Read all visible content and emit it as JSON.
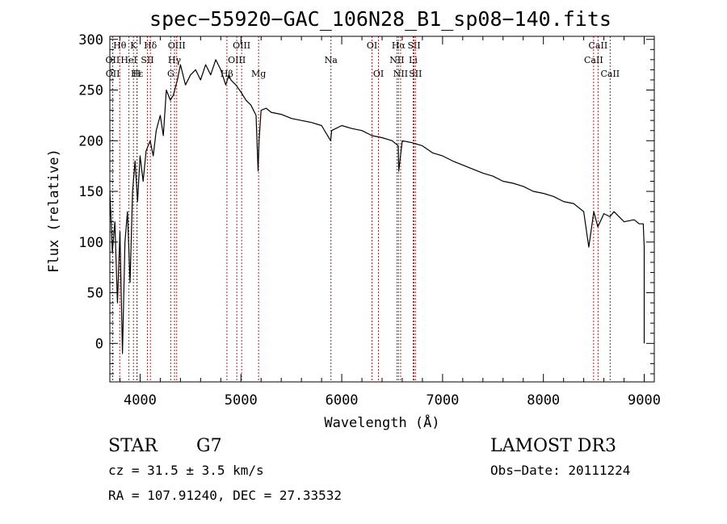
{
  "chart_data": {
    "type": "line",
    "title": "spec−55920−GAC_106N28_B1_sp08−140.fits",
    "xlabel": "Wavelength (Å)",
    "ylabel": "Flux (relative)",
    "xlim": [
      3700,
      9100
    ],
    "ylim": [
      -38,
      303
    ],
    "x_ticks": [
      4000,
      5000,
      6000,
      7000,
      8000,
      9000
    ],
    "y_ticks": [
      0,
      50,
      100,
      150,
      200,
      250,
      300
    ],
    "x_minor_step": 200,
    "y_minor_step": 10,
    "series": [
      {
        "name": "spectrum",
        "x": [
          3700,
          3725,
          3750,
          3775,
          3800,
          3825,
          3850,
          3875,
          3900,
          3925,
          3950,
          3975,
          4000,
          4030,
          4060,
          4100,
          4130,
          4160,
          4200,
          4230,
          4260,
          4300,
          4330,
          4370,
          4400,
          4450,
          4500,
          4550,
          4600,
          4650,
          4700,
          4750,
          4800,
          4850,
          4880,
          4900,
          4950,
          5000,
          5050,
          5100,
          5150,
          5170,
          5180,
          5200,
          5250,
          5300,
          5400,
          5500,
          5600,
          5700,
          5800,
          5890,
          5900,
          6000,
          6100,
          6200,
          6300,
          6400,
          6500,
          6560,
          6565,
          6600,
          6700,
          6800,
          6900,
          7000,
          7100,
          7200,
          7300,
          7400,
          7500,
          7600,
          7700,
          7800,
          7900,
          8000,
          8100,
          8200,
          8300,
          8400,
          8450,
          8500,
          8540,
          8600,
          8660,
          8700,
          8800,
          8900,
          8950,
          8990,
          9000,
          9000
        ],
        "y": [
          150,
          90,
          120,
          40,
          110,
          -10,
          100,
          130,
          60,
          150,
          180,
          140,
          185,
          160,
          190,
          200,
          185,
          210,
          225,
          205,
          250,
          240,
          245,
          260,
          275,
          255,
          265,
          270,
          260,
          275,
          265,
          280,
          270,
          255,
          265,
          260,
          255,
          248,
          240,
          235,
          225,
          170,
          200,
          230,
          232,
          228,
          226,
          222,
          220,
          218,
          215,
          200,
          210,
          215,
          212,
          210,
          205,
          203,
          200,
          195,
          170,
          200,
          198,
          195,
          188,
          185,
          180,
          176,
          172,
          168,
          165,
          160,
          158,
          155,
          150,
          148,
          145,
          140,
          138,
          130,
          95,
          130,
          115,
          128,
          125,
          130,
          120,
          122,
          118,
          118,
          95,
          0
        ]
      }
    ],
    "lines": [
      {
        "label": "Hθ",
        "x": 3798,
        "row": 0
      },
      {
        "label": "OII",
        "x": 3727,
        "row": 1
      },
      {
        "label": "OII",
        "x": 3729,
        "row": 2
      },
      {
        "label": "K",
        "x": 3934,
        "row": 0
      },
      {
        "label": "HeI",
        "x": 3889,
        "row": 1
      },
      {
        "label": "Hε",
        "x": 3970,
        "row": 2
      },
      {
        "label": "Hδ",
        "x": 4102,
        "row": 0
      },
      {
        "label": "SII",
        "x": 4072,
        "row": 1
      },
      {
        "label": "H",
        "x": 3968,
        "row": 2
      },
      {
        "label": "OIII",
        "x": 4363,
        "row": 0
      },
      {
        "label": "Hγ",
        "x": 4341,
        "row": 1
      },
      {
        "label": "G",
        "x": 4304,
        "row": 2
      },
      {
        "label": "OIII",
        "x": 5007,
        "row": 0
      },
      {
        "label": "OIII",
        "x": 4959,
        "row": 1
      },
      {
        "label": "Hβ",
        "x": 4861,
        "row": 2
      },
      {
        "label": "Mg",
        "x": 5175,
        "row": 2
      },
      {
        "label": "Na",
        "x": 5893,
        "row": 1
      },
      {
        "label": "OI",
        "x": 6300,
        "row": 0
      },
      {
        "label": "OI",
        "x": 6364,
        "row": 2
      },
      {
        "label": "Hα",
        "x": 6563,
        "row": 0
      },
      {
        "label": "NII",
        "x": 6548,
        "row": 1
      },
      {
        "label": "NII",
        "x": 6584,
        "row": 2
      },
      {
        "label": "SII",
        "x": 6717,
        "row": 0
      },
      {
        "label": "Li",
        "x": 6708,
        "row": 1
      },
      {
        "label": "SII",
        "x": 6731,
        "row": 2
      },
      {
        "label": "CaII",
        "x": 8542,
        "row": 0
      },
      {
        "label": "CaII",
        "x": 8498,
        "row": 1
      },
      {
        "label": "CaII",
        "x": 8662,
        "row": 2
      }
    ]
  },
  "info": {
    "object_class": "STAR",
    "subclass": "G7",
    "survey": "LAMOST DR3",
    "redshift_line": "cz = 31.5 ± 3.5 km/s",
    "obs_date_line": "Obs−Date: 20111224",
    "coord_line": "RA = 107.91240, DEC =  27.33532"
  }
}
